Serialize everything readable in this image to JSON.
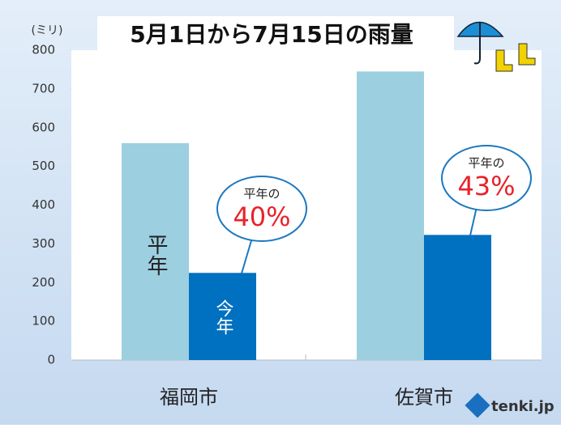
{
  "chart_data": {
    "type": "bar",
    "title": "5月1日から7月15日の雨量",
    "y_unit": "(ミリ)",
    "categories": [
      "福岡市",
      "佐賀市"
    ],
    "series": [
      {
        "name": "平年",
        "color": "#9ccfe0",
        "values": [
          560,
          745
        ]
      },
      {
        "name": "今年",
        "color": "#0070c0",
        "values": [
          225,
          323
        ]
      }
    ],
    "ylim": [
      0,
      800
    ],
    "yticks": [
      0,
      100,
      200,
      300,
      400,
      500,
      600,
      700,
      800
    ],
    "annotations": [
      {
        "prefix": "平年の",
        "text": "40%"
      },
      {
        "prefix": "平年の",
        "text": "43%"
      }
    ],
    "source": "tenki.jp"
  }
}
